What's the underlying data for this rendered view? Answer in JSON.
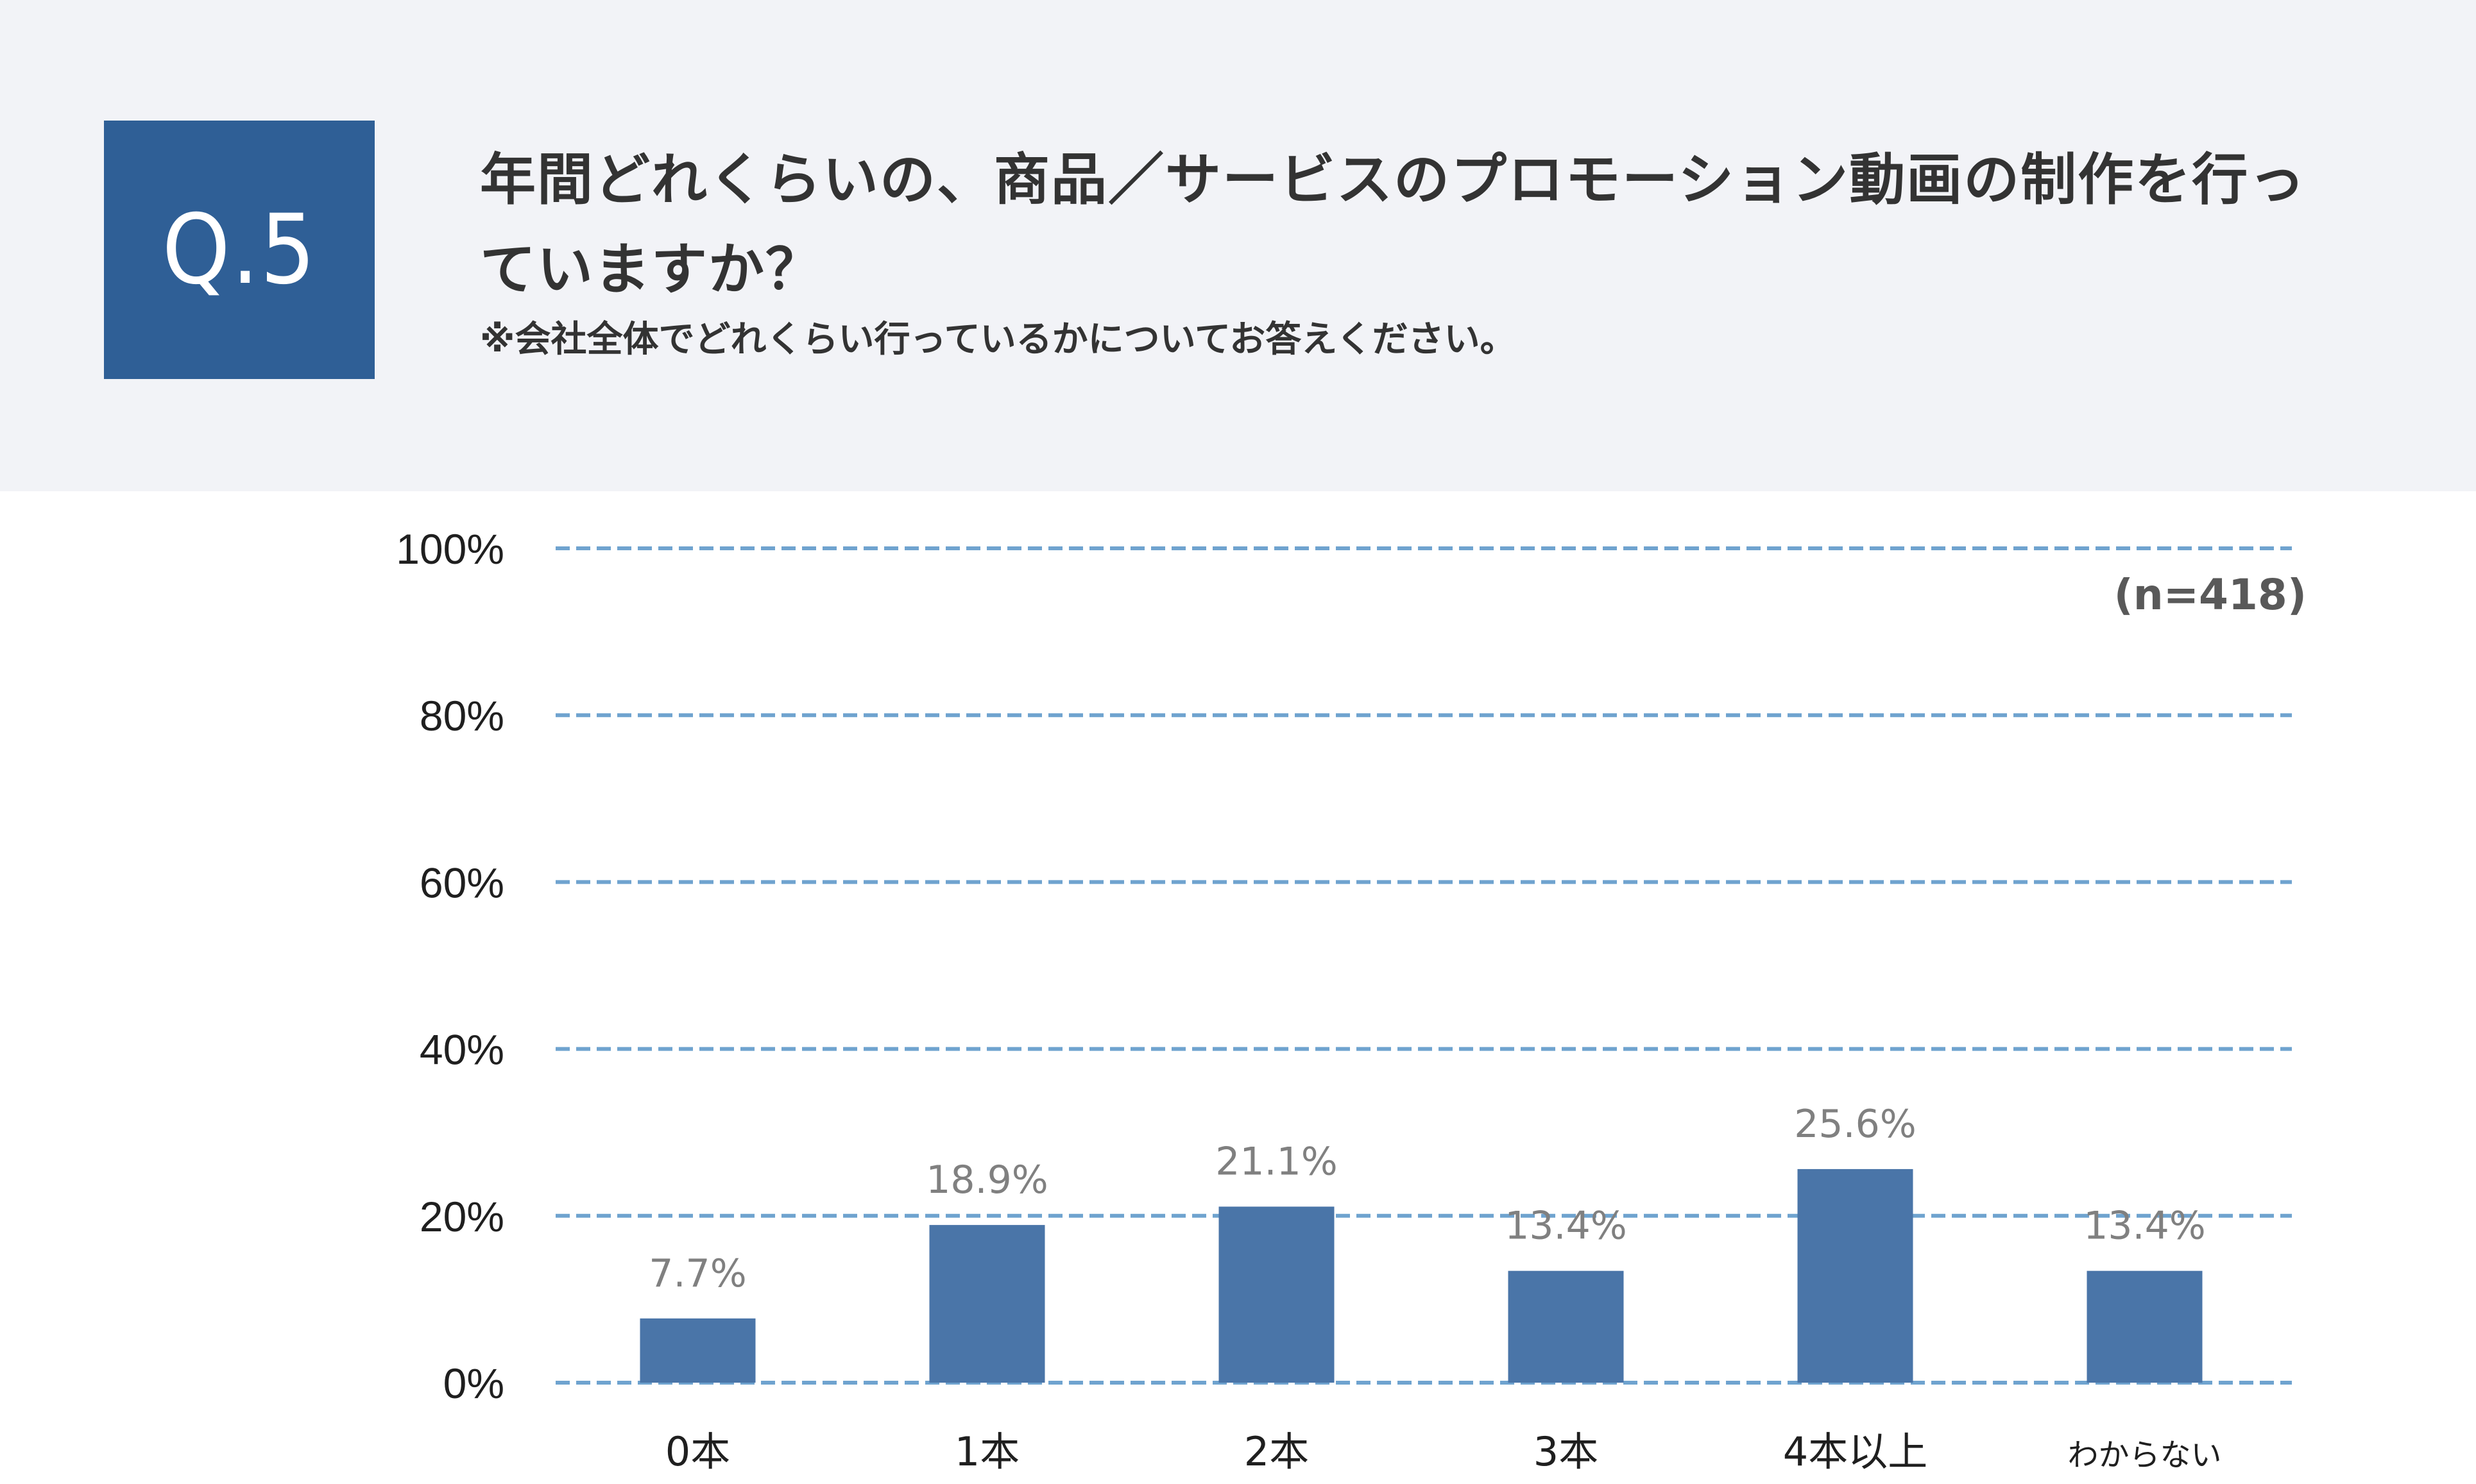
{
  "header": {
    "badge": "Q.5",
    "title": "年間どれくらいの、商品／サービスのプロモーション動画の制作を行っていますか？",
    "note": "※会社全体でどれくらい行っているかについてお答えください。"
  },
  "colors": {
    "header_bg": "#f2f3f7",
    "badge_bg": "#2f5f96",
    "bar": "#4a75a8",
    "grid": "#6fa3cf",
    "value_label": "#808080"
  },
  "chart_data": {
    "type": "bar",
    "title": "",
    "xlabel": "",
    "ylabel": "",
    "sample_note": "(n=418)",
    "categories": [
      "0本",
      "1本",
      "2本",
      "3本",
      "4本以上",
      "わからない"
    ],
    "values": [
      7.7,
      18.9,
      21.1,
      13.4,
      25.6,
      13.4
    ],
    "value_labels": [
      "7.7%",
      "18.9%",
      "21.1%",
      "13.4%",
      "25.6%",
      "13.4%"
    ],
    "yticks": [
      0,
      20,
      40,
      60,
      80,
      100
    ],
    "ytick_labels": [
      "0%",
      "20%",
      "40%",
      "60%",
      "80%",
      "100%"
    ],
    "ylim": [
      0,
      100
    ],
    "grid": true,
    "grid_style": "dashed"
  }
}
